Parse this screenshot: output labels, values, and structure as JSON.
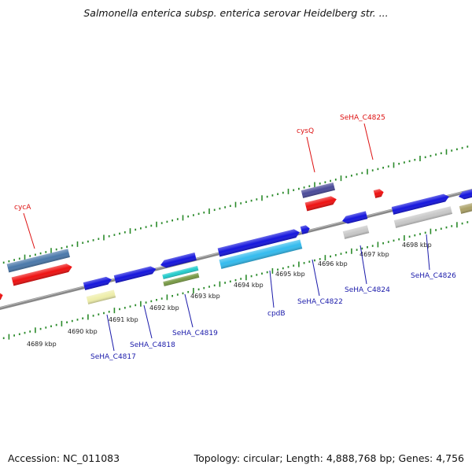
{
  "header": {
    "title": "Salmonella enterica subsp. enterica serovar Heidelberg str. ..."
  },
  "footer": {
    "accession": "Accession: NC_011083",
    "topology": "Topology: circular; Length: 4,888,768 bp; Genes: 4,756"
  },
  "colors": {
    "backbone": "#888888",
    "tick": "#2a8a2a",
    "top_label": "#dd1111",
    "bottom_label": "#1a1aaa",
    "scale_label": "#222222"
  },
  "scale_ticks": [
    "4689 kbp",
    "4690 kbp",
    "4691 kbp",
    "4692 kbp",
    "4693 kbp",
    "4694 kbp",
    "4695 kbp",
    "4696 kbp",
    "4697 kbp",
    "4698 kbp"
  ],
  "top_labels": [
    {
      "text": "cycA"
    },
    {
      "text": "cysQ"
    },
    {
      "text": "SeHA_C4825"
    }
  ],
  "bottom_labels": [
    {
      "text": "SeHA_C4817"
    },
    {
      "text": "SeHA_C4818"
    },
    {
      "text": "SeHA_C4819"
    },
    {
      "text": "cpdB"
    },
    {
      "text": "SeHA_C4822"
    },
    {
      "text": "SeHA_C4824"
    },
    {
      "text": "SeHA_C4826"
    }
  ],
  "genes": [
    {
      "name": "gene-steelblue",
      "color": "#4a78aa"
    },
    {
      "name": "gene-red-cycA",
      "color": "#ee1111"
    },
    {
      "name": "gene-red-edge",
      "color": "#ee1111"
    },
    {
      "name": "gene-blue-4817",
      "color": "#1515dd"
    },
    {
      "name": "gene-khaki-4817",
      "color": "#eeeeaa"
    },
    {
      "name": "gene-blue-4818",
      "color": "#1515dd"
    },
    {
      "name": "gene-blue-4819",
      "color": "#1515dd"
    },
    {
      "name": "gene-cyan-4819",
      "color": "#22cccc"
    },
    {
      "name": "gene-olive-4819",
      "color": "#779944"
    },
    {
      "name": "gene-blue-cpdB",
      "color": "#1515dd"
    },
    {
      "name": "gene-skyblue-cpdB",
      "color": "#33bbee"
    },
    {
      "name": "gene-blue-small",
      "color": "#1515dd"
    },
    {
      "name": "gene-slate-cysQ",
      "color": "#4a4a99"
    },
    {
      "name": "gene-red-cysQ",
      "color": "#ee1111"
    },
    {
      "name": "gene-red-4825",
      "color": "#ee1111"
    },
    {
      "name": "gene-blue-4824",
      "color": "#1515dd"
    },
    {
      "name": "gene-silver-4824",
      "color": "#c8c8c8"
    },
    {
      "name": "gene-blue-4826",
      "color": "#1515dd"
    },
    {
      "name": "gene-silver-4826",
      "color": "#c8c8c8"
    },
    {
      "name": "gene-blue-edge",
      "color": "#1515dd"
    },
    {
      "name": "gene-olive-edge",
      "color": "#aaa066"
    }
  ]
}
